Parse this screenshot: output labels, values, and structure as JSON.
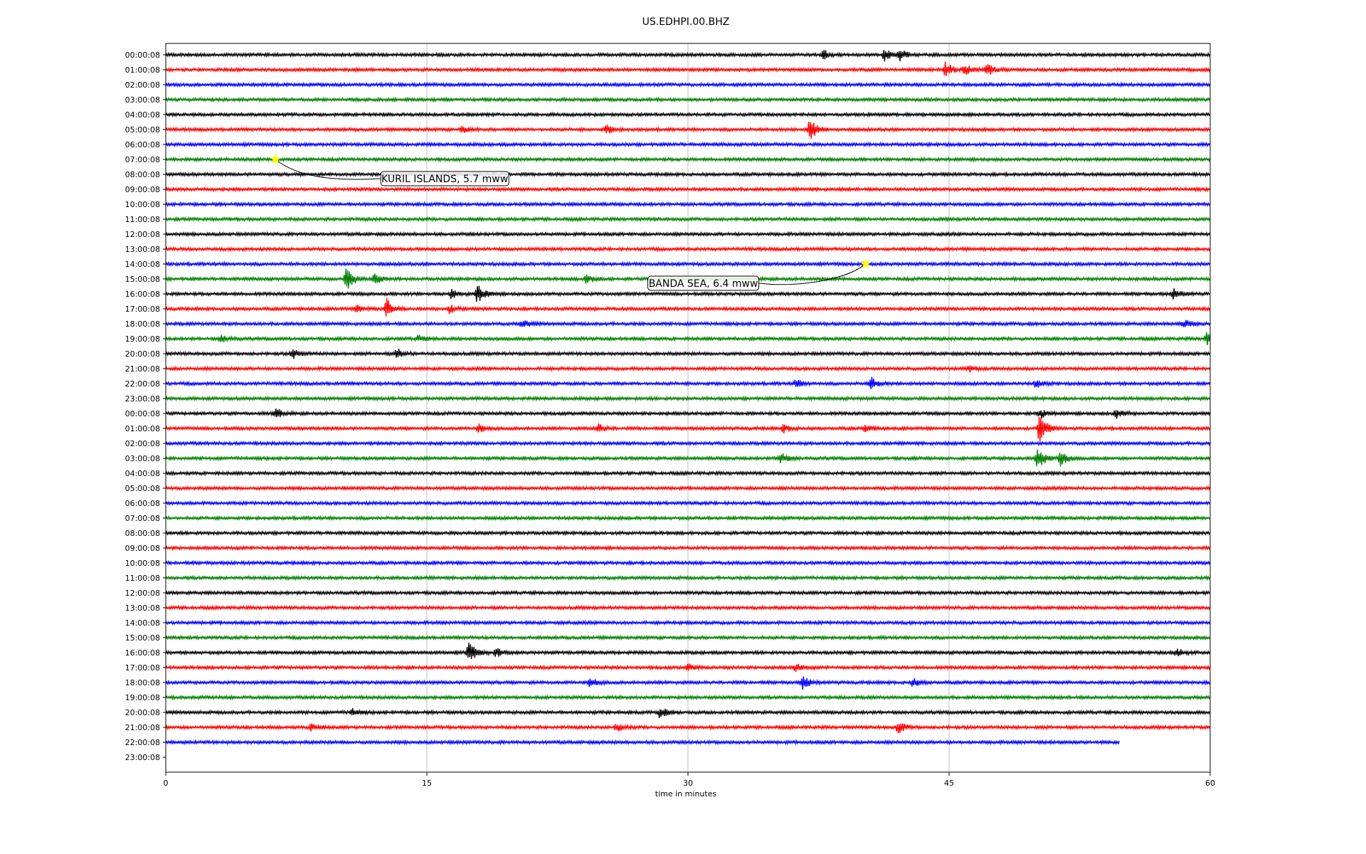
{
  "chart_data": {
    "type": "line",
    "title": "US.EDHPI.00.BHZ",
    "xlabel": "time in minutes",
    "ylabel": "",
    "xlim": [
      0,
      60
    ],
    "xticks": [
      "0",
      "15",
      "30",
      "45",
      "60"
    ],
    "grid": "vertical at x ticks",
    "row_labels": [
      "00:00:08",
      "01:00:08",
      "02:00:08",
      "03:00:08",
      "04:00:08",
      "05:00:08",
      "06:00:08",
      "07:00:08",
      "08:00:08",
      "09:00:08",
      "10:00:08",
      "11:00:08",
      "12:00:08",
      "13:00:08",
      "14:00:08",
      "15:00:08",
      "16:00:08",
      "17:00:08",
      "18:00:08",
      "19:00:08",
      "20:00:08",
      "21:00:08",
      "22:00:08",
      "23:00:08",
      "00:00:08",
      "01:00:08",
      "02:00:08",
      "03:00:08",
      "04:00:08",
      "05:00:08",
      "06:00:08",
      "07:00:08",
      "08:00:08",
      "09:00:08",
      "10:00:08",
      "11:00:08",
      "12:00:08",
      "13:00:08",
      "14:00:08",
      "15:00:08",
      "16:00:08",
      "17:00:08",
      "18:00:08",
      "19:00:08",
      "20:00:08",
      "21:00:08",
      "22:00:08",
      "23:00:08"
    ],
    "colors": [
      "#000000",
      "#ff0000",
      "#0000ff",
      "#008000"
    ],
    "last_row_with_data": 46,
    "last_row_end_minute": 54.8,
    "events": [
      {
        "row": 1,
        "minute": 44.8,
        "amp": 1.0
      },
      {
        "row": 1,
        "minute": 45.9,
        "amp": 0.7
      },
      {
        "row": 1,
        "minute": 47.2,
        "amp": 0.8
      },
      {
        "row": 0,
        "minute": 37.8,
        "amp": 0.6
      },
      {
        "row": 0,
        "minute": 41.3,
        "amp": 0.7
      },
      {
        "row": 0,
        "minute": 42.2,
        "amp": 0.7
      },
      {
        "row": 5,
        "minute": 37.0,
        "amp": 1.6
      },
      {
        "row": 5,
        "minute": 25.3,
        "amp": 0.6
      },
      {
        "row": 5,
        "minute": 17.0,
        "amp": 0.4
      },
      {
        "row": 15,
        "minute": 10.4,
        "amp": 1.5
      },
      {
        "row": 15,
        "minute": 12.0,
        "amp": 0.7
      },
      {
        "row": 15,
        "minute": 24.2,
        "amp": 0.6
      },
      {
        "row": 16,
        "minute": 17.9,
        "amp": 1.2
      },
      {
        "row": 16,
        "minute": 16.4,
        "amp": 0.5
      },
      {
        "row": 16,
        "minute": 57.9,
        "amp": 0.6
      },
      {
        "row": 17,
        "minute": 12.7,
        "amp": 1.3
      },
      {
        "row": 17,
        "minute": 11.0,
        "amp": 0.5
      },
      {
        "row": 17,
        "minute": 16.3,
        "amp": 0.5
      },
      {
        "row": 18,
        "minute": 58.5,
        "amp": 0.5
      },
      {
        "row": 18,
        "minute": 20.5,
        "amp": 0.5
      },
      {
        "row": 19,
        "minute": 3.2,
        "amp": 0.4
      },
      {
        "row": 19,
        "minute": 14.5,
        "amp": 0.4
      },
      {
        "row": 19,
        "minute": 59.8,
        "amp": 0.9
      },
      {
        "row": 20,
        "minute": 7.3,
        "amp": 0.6
      },
      {
        "row": 20,
        "minute": 13.3,
        "amp": 0.6
      },
      {
        "row": 21,
        "minute": 46.2,
        "amp": 0.4
      },
      {
        "row": 22,
        "minute": 40.5,
        "amp": 0.9
      },
      {
        "row": 22,
        "minute": 36.2,
        "amp": 0.5
      },
      {
        "row": 22,
        "minute": 50.0,
        "amp": 0.5
      },
      {
        "row": 24,
        "minute": 6.3,
        "amp": 0.7
      },
      {
        "row": 24,
        "minute": 50.2,
        "amp": 0.6
      },
      {
        "row": 24,
        "minute": 54.6,
        "amp": 0.6
      },
      {
        "row": 25,
        "minute": 50.2,
        "amp": 2.0
      },
      {
        "row": 25,
        "minute": 18.0,
        "amp": 0.5
      },
      {
        "row": 25,
        "minute": 24.8,
        "amp": 0.6
      },
      {
        "row": 25,
        "minute": 35.5,
        "amp": 0.5
      },
      {
        "row": 25,
        "minute": 40.2,
        "amp": 0.5
      },
      {
        "row": 27,
        "minute": 50.1,
        "amp": 1.5
      },
      {
        "row": 27,
        "minute": 35.3,
        "amp": 0.8
      },
      {
        "row": 27,
        "minute": 51.4,
        "amp": 1.0
      },
      {
        "row": 40,
        "minute": 17.4,
        "amp": 1.4
      },
      {
        "row": 40,
        "minute": 19.0,
        "amp": 0.5
      },
      {
        "row": 40,
        "minute": 58.1,
        "amp": 0.5
      },
      {
        "row": 41,
        "minute": 36.2,
        "amp": 0.5
      },
      {
        "row": 41,
        "minute": 30.0,
        "amp": 0.4
      },
      {
        "row": 42,
        "minute": 36.6,
        "amp": 0.8
      },
      {
        "row": 42,
        "minute": 24.4,
        "amp": 0.6
      },
      {
        "row": 42,
        "minute": 42.9,
        "amp": 0.5
      },
      {
        "row": 44,
        "minute": 28.4,
        "amp": 0.7
      },
      {
        "row": 44,
        "minute": 10.7,
        "amp": 0.4
      },
      {
        "row": 45,
        "minute": 42.1,
        "amp": 0.8
      },
      {
        "row": 45,
        "minute": 25.9,
        "amp": 0.6
      },
      {
        "row": 45,
        "minute": 8.4,
        "amp": 0.5
      }
    ],
    "annotations": [
      {
        "text": "KURIL ISLANDS, 5.7 mww",
        "row": 7,
        "minute": 6.3
      },
      {
        "text": "BANDA SEA, 6.4 mww",
        "row": 14,
        "minute": 40.2
      }
    ]
  }
}
